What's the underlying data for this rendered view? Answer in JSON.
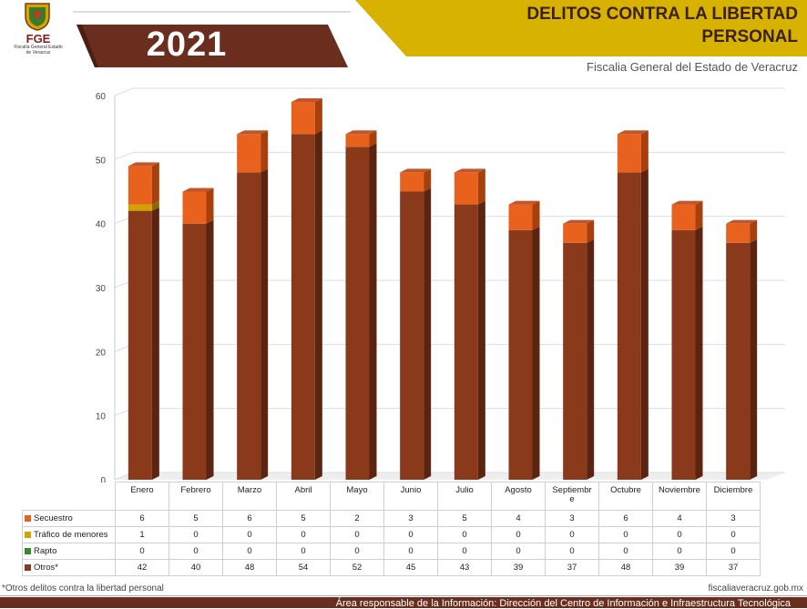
{
  "header": {
    "logo_text": "FGE",
    "logo_subtitle": "Fiscalía General Estado de Veracruz",
    "year": "2021",
    "title_line1": "DELITOS CONTRA LA LIBERTAD",
    "title_line2": "PERSONAL",
    "agency": "Fiscalia General del Estado de Veracruz"
  },
  "colors": {
    "secuestro": "#e8621e",
    "trafico": "#d4a200",
    "rapto": "#3a8a2a",
    "otros": "#8a3a1a",
    "gold_band": "#d8b200",
    "brown_band": "#6a2e1e"
  },
  "chart_data": {
    "type": "bar",
    "stacked": true,
    "categories": [
      "Enero",
      "Febrero",
      "Marzo",
      "Abril",
      "Mayo",
      "Junio",
      "Julio",
      "Agosto",
      "Septiembre",
      "Octubre",
      "Noviembre",
      "Diciembre"
    ],
    "series": [
      {
        "name": "Secuestro",
        "values": [
          6,
          5,
          6,
          5,
          2,
          3,
          5,
          4,
          3,
          6,
          4,
          3
        ]
      },
      {
        "name": "Tráfico de menores",
        "values": [
          1,
          0,
          0,
          0,
          0,
          0,
          0,
          0,
          0,
          0,
          0,
          0
        ]
      },
      {
        "name": "Rapto",
        "values": [
          0,
          0,
          0,
          0,
          0,
          0,
          0,
          0,
          0,
          0,
          0,
          0
        ]
      },
      {
        "name": "Otros*",
        "values": [
          42,
          40,
          48,
          54,
          52,
          45,
          43,
          39,
          37,
          48,
          39,
          37
        ]
      }
    ],
    "ylim": [
      0,
      60
    ],
    "yticks": [
      0,
      10,
      20,
      30,
      40,
      50,
      60
    ],
    "grid": true,
    "legend": "data table below"
  },
  "footer": {
    "note": "*Otros delitos contra la libertad personal",
    "url": "fiscaliaveracruz.gob.mx",
    "responsible": "Área responsable de la Información: Dirección del Centro de Información e Infraestructura Tecnológica"
  }
}
